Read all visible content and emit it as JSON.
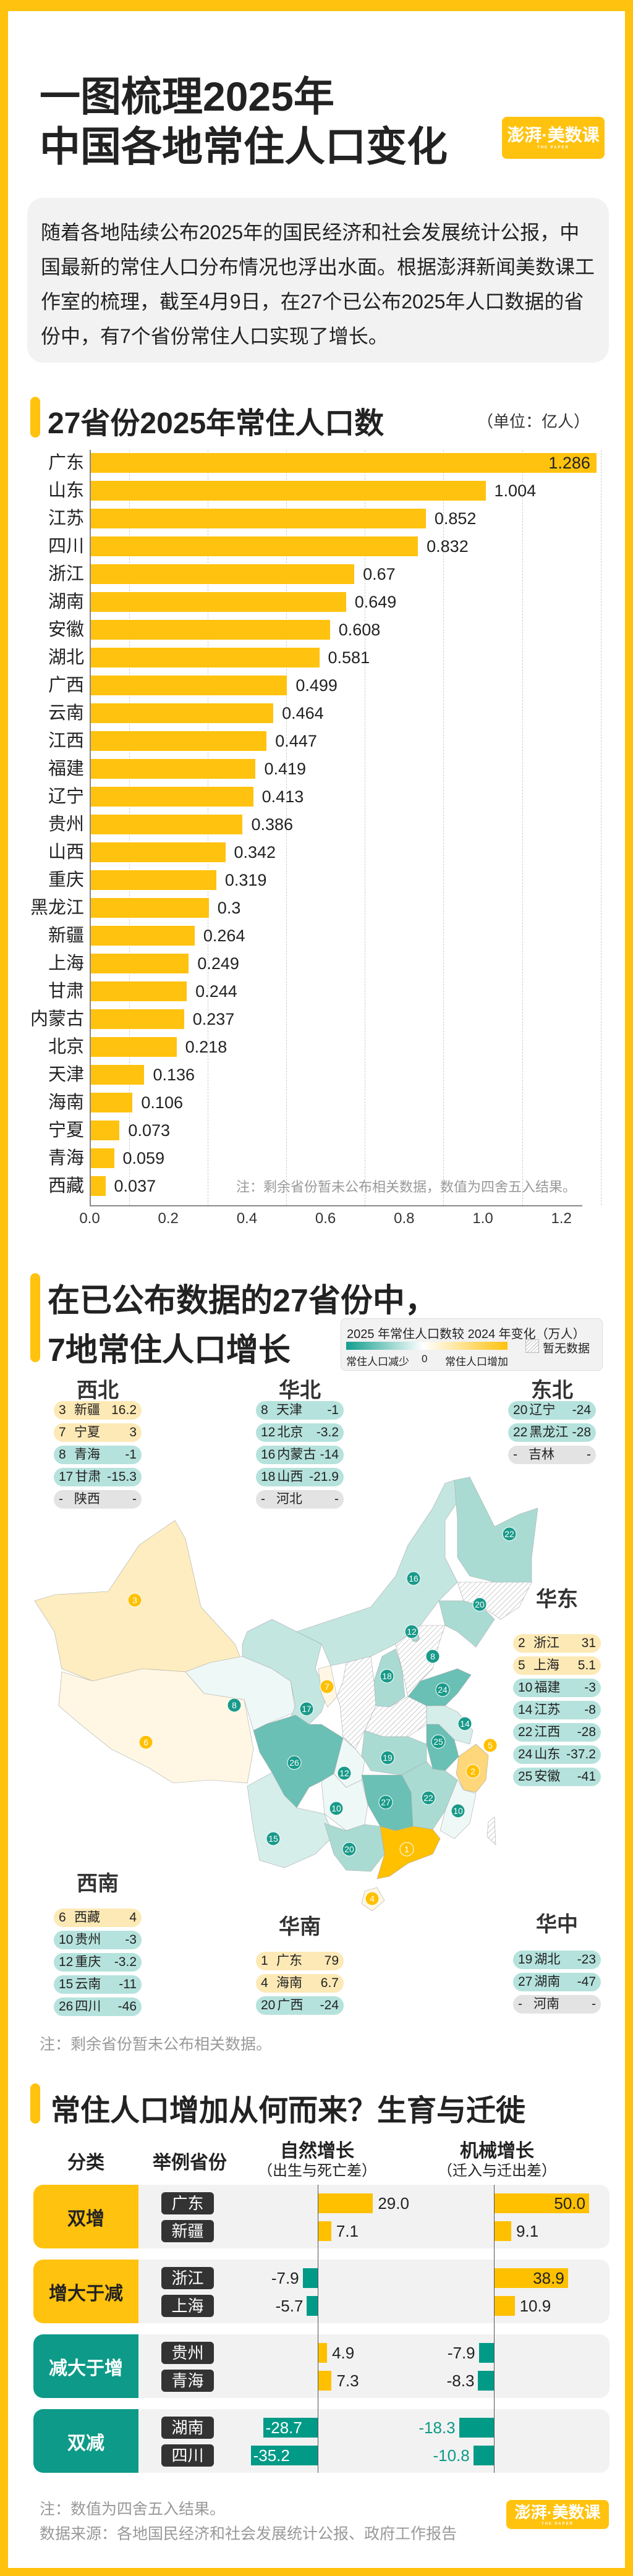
{
  "header": {
    "title_line1": "一图梳理2025年",
    "title_line2": "中国各地常住人口变化",
    "logo": "澎湃·美数课",
    "logo_sub": "THE PAPER"
  },
  "intro": "随着各地陆续公布2025年的国民经济和社会发展统计公报，中国最新的常住人口分布情况也浮出水面。根据澎湃新闻美数课工作室的梳理，截至4月9日，在27个已公布2025年人口数据的省份中，有7个省份常住人口实现了增长。",
  "colors": {
    "accent": "#ffc20e",
    "increase": "#ffc000",
    "decrease": "#009a87",
    "increase_light": "#fde9b5",
    "decrease_light": "#b5e2dc",
    "no_data": "#e3e3e3"
  },
  "chart_data": {
    "type": "bar",
    "orientation": "horizontal",
    "title": "27省份2025年常住人口数",
    "unit": "（单位：亿人）",
    "categories": [
      "广东",
      "山东",
      "江苏",
      "四川",
      "浙江",
      "湖南",
      "安徽",
      "湖北",
      "广西",
      "云南",
      "江西",
      "福建",
      "辽宁",
      "贵州",
      "山西",
      "重庆",
      "黑龙江",
      "新疆",
      "上海",
      "甘肃",
      "内蒙古",
      "北京",
      "天津",
      "海南",
      "宁夏",
      "青海",
      "西藏"
    ],
    "values": [
      1.286,
      1.004,
      0.852,
      0.832,
      0.67,
      0.649,
      0.608,
      0.581,
      0.499,
      0.464,
      0.447,
      0.419,
      0.413,
      0.386,
      0.342,
      0.319,
      0.3,
      0.264,
      0.249,
      0.244,
      0.237,
      0.218,
      0.136,
      0.106,
      0.073,
      0.059,
      0.037
    ],
    "xlim": [
      0,
      1.3
    ],
    "xticks": [
      "0.0",
      "0.2",
      "0.4",
      "0.6",
      "0.8",
      "1.0",
      "1.2"
    ],
    "grid": true,
    "note": "注：剩余省份暂未公布相关数据，数值为四舍五入结果。"
  },
  "map": {
    "title_line1": "在已公布数据的27省份中，",
    "title_line2": "7地常住人口增长",
    "legend": {
      "title": "2025 年常住人口数较 2024 年变化（万人）",
      "low": "常住人口减少",
      "zero": "0",
      "high": "常住人口增加",
      "no_data": "暂无数据"
    },
    "regions": [
      {
        "name": "西北",
        "items": [
          {
            "rank": "3",
            "province": "新疆",
            "change": "16.2",
            "type": "inc"
          },
          {
            "rank": "7",
            "province": "宁夏",
            "change": "3",
            "type": "inc"
          },
          {
            "rank": "8",
            "province": "青海",
            "change": "-1",
            "type": "dec"
          },
          {
            "rank": "17",
            "province": "甘肃",
            "change": "-15.3",
            "type": "dec"
          },
          {
            "rank": "-",
            "province": "陕西",
            "change": "-",
            "type": "na"
          }
        ]
      },
      {
        "name": "华北",
        "items": [
          {
            "rank": "8",
            "province": "天津",
            "change": "-1",
            "type": "dec"
          },
          {
            "rank": "12",
            "province": "北京",
            "change": "-3.2",
            "type": "dec"
          },
          {
            "rank": "16",
            "province": "内蒙古",
            "change": "-14",
            "type": "dec"
          },
          {
            "rank": "18",
            "province": "山西",
            "change": "-21.9",
            "type": "dec"
          },
          {
            "rank": "-",
            "province": "河北",
            "change": "-",
            "type": "na"
          }
        ]
      },
      {
        "name": "东北",
        "items": [
          {
            "rank": "20",
            "province": "辽宁",
            "change": "-24",
            "type": "dec"
          },
          {
            "rank": "22",
            "province": "黑龙江",
            "change": "-28",
            "type": "dec"
          },
          {
            "rank": "-",
            "province": "吉林",
            "change": "-",
            "type": "na"
          }
        ]
      },
      {
        "name": "华东",
        "items": [
          {
            "rank": "2",
            "province": "浙江",
            "change": "31",
            "type": "inc"
          },
          {
            "rank": "5",
            "province": "上海",
            "change": "5.1",
            "type": "inc"
          },
          {
            "rank": "10",
            "province": "福建",
            "change": "-3",
            "type": "dec"
          },
          {
            "rank": "14",
            "province": "江苏",
            "change": "-8",
            "type": "dec"
          },
          {
            "rank": "22",
            "province": "江西",
            "change": "-28",
            "type": "dec"
          },
          {
            "rank": "24",
            "province": "山东",
            "change": "-37.2",
            "type": "dec"
          },
          {
            "rank": "25",
            "province": "安徽",
            "change": "-41",
            "type": "dec"
          }
        ]
      },
      {
        "name": "西南",
        "items": [
          {
            "rank": "6",
            "province": "西藏",
            "change": "4",
            "type": "inc"
          },
          {
            "rank": "10",
            "province": "贵州",
            "change": "-3",
            "type": "dec"
          },
          {
            "rank": "12",
            "province": "重庆",
            "change": "-3.2",
            "type": "dec"
          },
          {
            "rank": "15",
            "province": "云南",
            "change": "-11",
            "type": "dec"
          },
          {
            "rank": "26",
            "province": "四川",
            "change": "-46",
            "type": "dec"
          }
        ]
      },
      {
        "name": "华南",
        "items": [
          {
            "rank": "1",
            "province": "广东",
            "change": "79",
            "type": "inc"
          },
          {
            "rank": "4",
            "province": "海南",
            "change": "6.7",
            "type": "inc"
          },
          {
            "rank": "20",
            "province": "广西",
            "change": "-24",
            "type": "dec"
          }
        ]
      },
      {
        "name": "华中",
        "items": [
          {
            "rank": "19",
            "province": "湖北",
            "change": "-23",
            "type": "dec"
          },
          {
            "rank": "27",
            "province": "湖南",
            "change": "-47",
            "type": "dec"
          },
          {
            "rank": "-",
            "province": "河南",
            "change": "-",
            "type": "na"
          }
        ]
      }
    ],
    "note": "注：剩余省份暂未公布相关数据。"
  },
  "growth": {
    "title": "常住人口增加从何而来？生育与迁徙",
    "headers": {
      "category": "分类",
      "province": "举例省份",
      "natural": "自然增长",
      "natural_sub": "（出生与死亡差）",
      "migration": "机械增长",
      "migration_sub": "（迁入与迁出差）"
    },
    "groups": [
      {
        "name": "双增",
        "tone": "inc",
        "rows": [
          {
            "province": "广东",
            "natural": 29.0,
            "migration": 50.0
          },
          {
            "province": "新疆",
            "natural": 7.1,
            "migration": 9.1
          }
        ]
      },
      {
        "name": "增大于减",
        "tone": "inc",
        "rows": [
          {
            "province": "浙江",
            "natural": -7.9,
            "migration": 38.9
          },
          {
            "province": "上海",
            "natural": -5.7,
            "migration": 10.9
          }
        ]
      },
      {
        "name": "减大于增",
        "tone": "dec",
        "rows": [
          {
            "province": "贵州",
            "natural": 4.9,
            "migration": -7.9
          },
          {
            "province": "青海",
            "natural": 7.3,
            "migration": -8.3
          }
        ]
      },
      {
        "name": "双减",
        "tone": "dec",
        "rows": [
          {
            "province": "湖南",
            "natural": -28.7,
            "migration": -18.3
          },
          {
            "province": "四川",
            "natural": -35.2,
            "migration": -10.8
          }
        ]
      }
    ],
    "note": "注：数值为四舍五入结果。",
    "source": "数据来源：各地国民经济和社会发展统计公报、政府工作报告"
  }
}
